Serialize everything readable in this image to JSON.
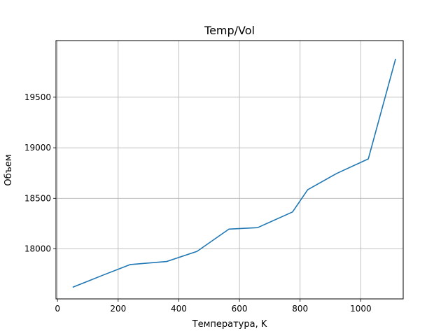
{
  "chart_data": {
    "type": "line",
    "title": "Temp/Vol",
    "xlabel": "Температура, K",
    "ylabel": "Объем",
    "xlim": [
      -5,
      1140
    ],
    "ylim": [
      17505,
      20060
    ],
    "xticks": [
      0,
      200,
      400,
      600,
      800,
      1000
    ],
    "yticks": [
      18000,
      18500,
      19000,
      19500
    ],
    "grid": true,
    "series": [
      {
        "color": "#1f77b4",
        "x": [
          50,
          150,
          240,
          360,
          460,
          565,
          660,
          775,
          825,
          920,
          1025,
          1115
        ],
        "y": [
          17620,
          17740,
          17845,
          17875,
          17975,
          18195,
          18210,
          18365,
          18585,
          18745,
          18890,
          19880
        ]
      }
    ]
  }
}
